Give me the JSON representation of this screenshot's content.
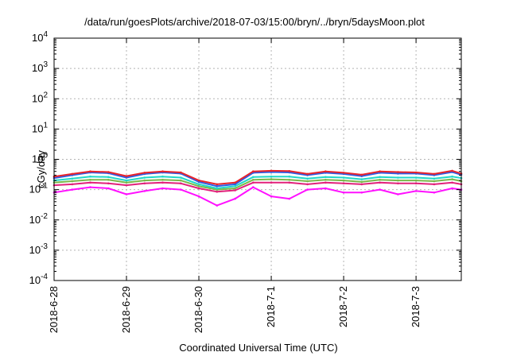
{
  "chart_data": {
    "type": "line",
    "title": "/data/run/goesPlots/archive/2018-07-03/15:00/bryn/../bryn/5daysMoon.plot",
    "xlabel": "Coordinated Universal Time (UTC)",
    "ylabel": "cGy/day",
    "yscale": "log",
    "ylim": [
      0.0001,
      10000
    ],
    "y_ticks": [
      {
        "value": 0.0001,
        "base": "10",
        "exp": "-4"
      },
      {
        "value": 0.001,
        "base": "10",
        "exp": "-3"
      },
      {
        "value": 0.01,
        "base": "10",
        "exp": "-2"
      },
      {
        "value": 0.1,
        "base": "10",
        "exp": "-1"
      },
      {
        "value": 1,
        "base": "10",
        "exp": "0"
      },
      {
        "value": 10,
        "base": "10",
        "exp": "1"
      },
      {
        "value": 100,
        "base": "10",
        "exp": "2"
      },
      {
        "value": 1000,
        "base": "10",
        "exp": "3"
      },
      {
        "value": 10000,
        "base": "10",
        "exp": "4"
      }
    ],
    "xlim": [
      "2018-06-28T00:00",
      "2018-07-03T15:00"
    ],
    "x_ticks": [
      {
        "value": "2018-06-28T00:00",
        "label": "2018-6-28"
      },
      {
        "value": "2018-06-29T00:00",
        "label": "2018-6-29"
      },
      {
        "value": "2018-06-30T00:00",
        "label": "2018-6-30"
      },
      {
        "value": "2018-07-01T00:00",
        "label": "2018-7-1"
      },
      {
        "value": "2018-07-02T00:00",
        "label": "2018-7-2"
      },
      {
        "value": "2018-07-03T00:00",
        "label": "2018-7-3"
      }
    ],
    "grid": true,
    "legend": "none",
    "x": [
      "2018-06-28T00:00",
      "2018-06-28T06:00",
      "2018-06-28T12:00",
      "2018-06-28T18:00",
      "2018-06-29T00:00",
      "2018-06-29T06:00",
      "2018-06-29T12:00",
      "2018-06-29T18:00",
      "2018-06-30T00:00",
      "2018-06-30T06:00",
      "2018-06-30T12:00",
      "2018-06-30T18:00",
      "2018-07-01T00:00",
      "2018-07-01T06:00",
      "2018-07-01T12:00",
      "2018-07-01T18:00",
      "2018-07-02T00:00",
      "2018-07-02T06:00",
      "2018-07-02T12:00",
      "2018-07-02T18:00",
      "2018-07-03T00:00",
      "2018-07-03T06:00",
      "2018-07-03T12:00",
      "2018-07-03T15:00"
    ],
    "series": [
      {
        "color": "#e8232a",
        "values": [
          0.27,
          0.33,
          0.4,
          0.38,
          0.28,
          0.36,
          0.4,
          0.37,
          0.2,
          0.15,
          0.17,
          0.4,
          0.42,
          0.41,
          0.33,
          0.4,
          0.36,
          0.31,
          0.4,
          0.38,
          0.37,
          0.33,
          0.42,
          0.34
        ]
      },
      {
        "color": "#2c5de5",
        "values": [
          0.24,
          0.3,
          0.37,
          0.35,
          0.25,
          0.33,
          0.37,
          0.34,
          0.18,
          0.13,
          0.15,
          0.36,
          0.38,
          0.37,
          0.3,
          0.36,
          0.33,
          0.28,
          0.36,
          0.34,
          0.34,
          0.3,
          0.38,
          0.31
        ]
      },
      {
        "color": "#20d8c8",
        "values": [
          0.2,
          0.23,
          0.27,
          0.26,
          0.2,
          0.25,
          0.27,
          0.25,
          0.15,
          0.11,
          0.13,
          0.26,
          0.27,
          0.27,
          0.23,
          0.26,
          0.25,
          0.22,
          0.26,
          0.25,
          0.25,
          0.23,
          0.27,
          0.24
        ]
      },
      {
        "color": "#7ab84a",
        "values": [
          0.17,
          0.19,
          0.21,
          0.21,
          0.17,
          0.2,
          0.21,
          0.2,
          0.13,
          0.1,
          0.11,
          0.21,
          0.22,
          0.21,
          0.19,
          0.21,
          0.2,
          0.18,
          0.21,
          0.2,
          0.2,
          0.19,
          0.22,
          0.19
        ]
      },
      {
        "color": "#e2207a",
        "values": [
          0.14,
          0.15,
          0.17,
          0.16,
          0.14,
          0.16,
          0.17,
          0.16,
          0.11,
          0.085,
          0.095,
          0.17,
          0.17,
          0.17,
          0.15,
          0.17,
          0.16,
          0.15,
          0.17,
          0.16,
          0.16,
          0.15,
          0.17,
          0.15
        ]
      },
      {
        "color": "#ff10ff",
        "values": [
          0.08,
          0.1,
          0.12,
          0.11,
          0.07,
          0.09,
          0.11,
          0.1,
          0.06,
          0.03,
          0.05,
          0.12,
          0.06,
          0.05,
          0.1,
          0.11,
          0.08,
          0.08,
          0.1,
          0.07,
          0.09,
          0.08,
          0.11,
          0.1
        ]
      }
    ]
  }
}
